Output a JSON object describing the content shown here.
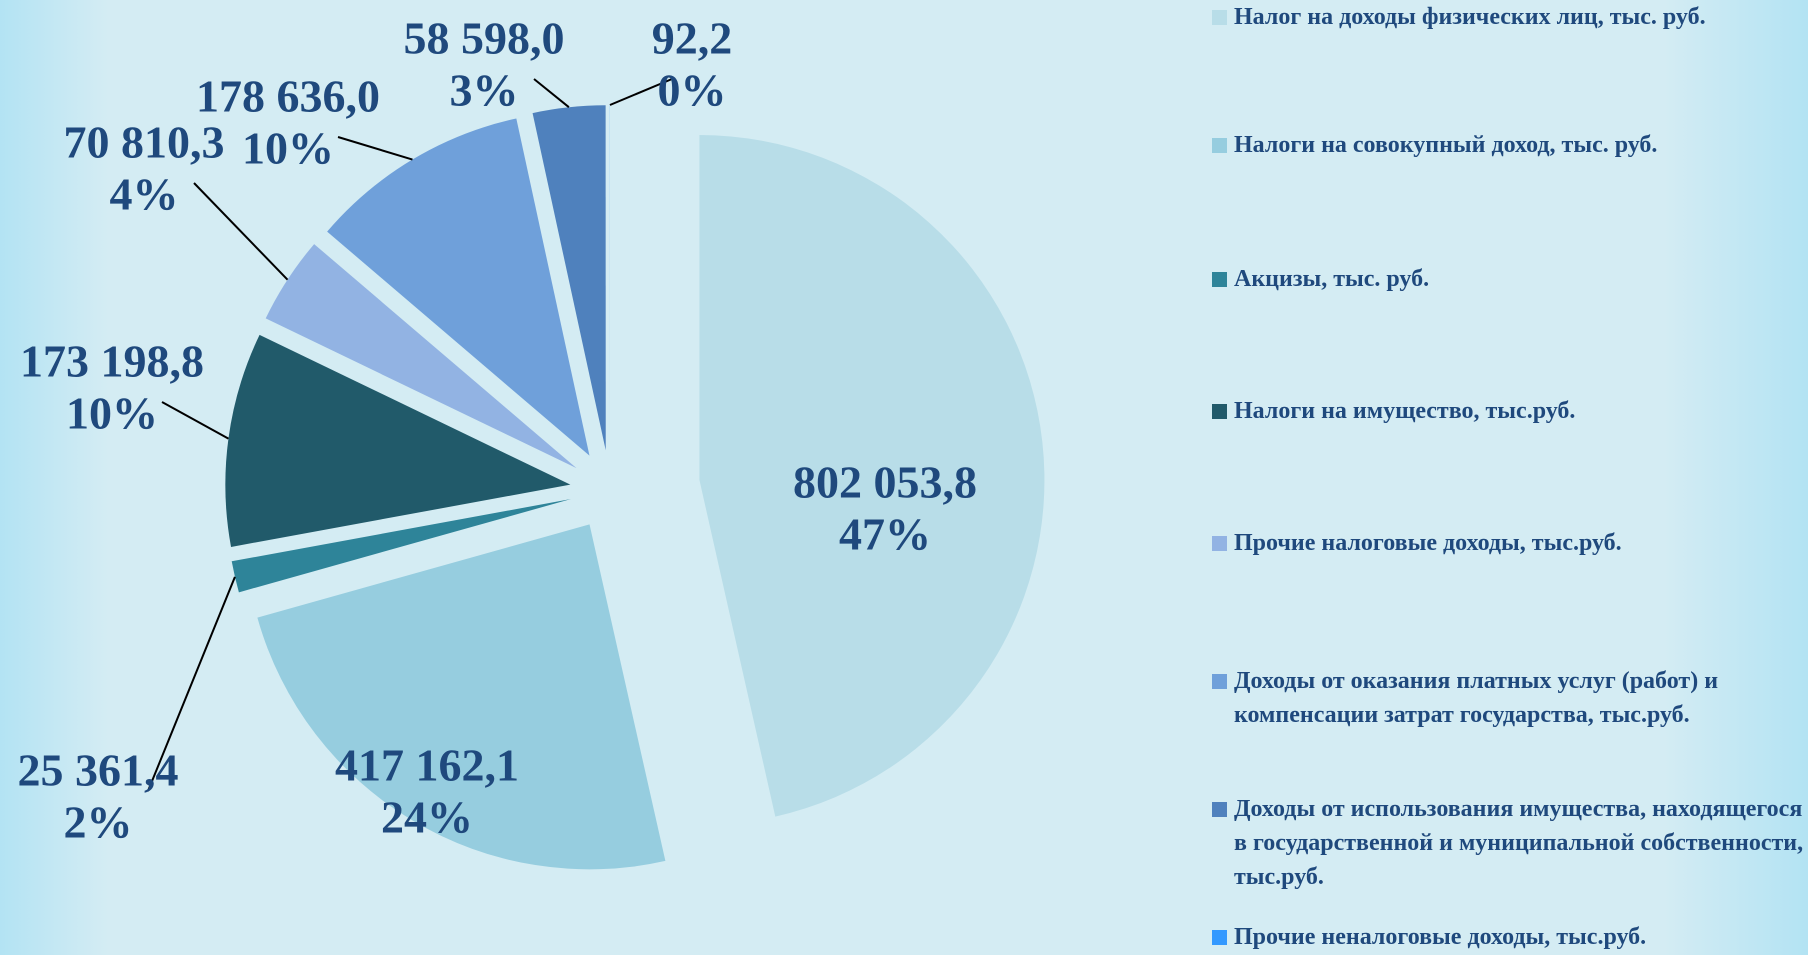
{
  "chart_data": {
    "type": "pie",
    "categories": [
      "Налог на доходы физических лиц, тыс. руб.",
      "Налоги на совокупный доход, тыс. руб.",
      "Акцизы, тыс. руб.",
      "Налоги на имущество, тыс.руб.",
      "Прочие налоговые доходы, тыс.руб.",
      "Доходы от оказания платных услуг (работ) и компенсации затрат государства, тыс.руб.",
      "Доходы от использования имущества, находящегося  в государственной и муниципальной собственности, тыс.руб.",
      "Прочие неналоговые доходы, тыс.руб."
    ],
    "values": [
      802053.8,
      417162.1,
      25361.4,
      173198.8,
      70810.3,
      178636.0,
      58598.0,
      92.2
    ],
    "value_labels": [
      "802 053,8",
      "417 162,1",
      "25 361,4",
      "173 198,8",
      "70 810,3",
      "178 636,0",
      "58 598,0",
      "92,2"
    ],
    "percents": [
      47,
      24,
      2,
      10,
      4,
      10,
      3,
      0
    ],
    "percent_labels": [
      "47%",
      "24%",
      "2%",
      "10%",
      "4%",
      "10%",
      "3%",
      "0%"
    ],
    "colors": [
      "#b8dde8",
      "#96cddf",
      "#2e8499",
      "#215a6a",
      "#92b3e3",
      "#6fa0da",
      "#4f81bd",
      "#3399ff"
    ],
    "legend": "right"
  }
}
